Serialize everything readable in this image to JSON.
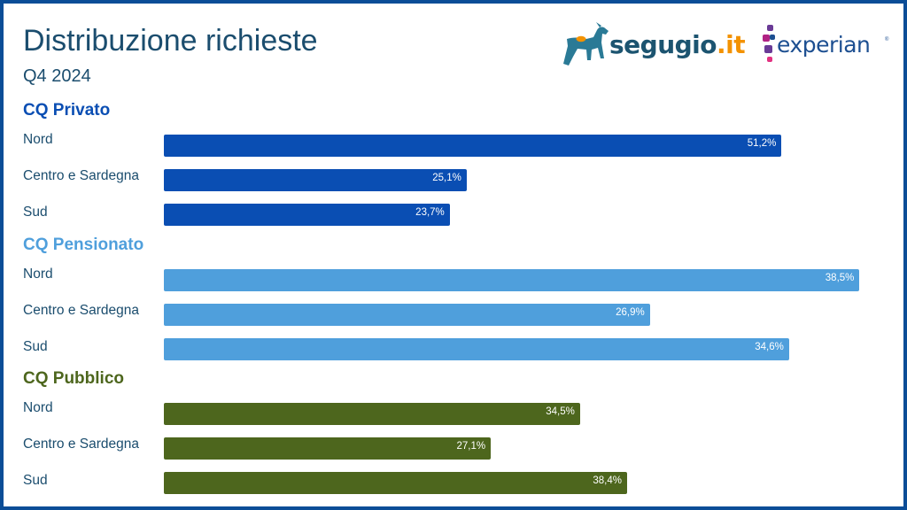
{
  "header": {
    "title": "Distribuzione richieste",
    "subtitle": "Q4 2024"
  },
  "logos": {
    "segugio": {
      "name": "segugio",
      "suffix": ".it",
      "icon": "dog-icon"
    },
    "experian": {
      "name": "experian",
      "registered": "®",
      "icon": "experian-dots-icon"
    }
  },
  "colors": {
    "cq_privato": "#0a4eb3",
    "cq_pensionato": "#4f9fdc",
    "cq_pubblico": "#4d661d",
    "frame": "#0b4d97",
    "text": "#1b4d6e"
  },
  "chart_data": {
    "type": "bar",
    "orientation": "horizontal",
    "title": "Distribuzione richieste",
    "subtitle": "Q4 2024",
    "value_format": "percent",
    "groups": [
      {
        "name": "CQ Privato",
        "color": "#0a4eb3",
        "categories": [
          "Nord",
          "Centro e Sardegna",
          "Sud"
        ],
        "values": [
          51.2,
          25.1,
          23.7
        ],
        "labels": [
          "51,2%",
          "25,1%",
          "23,7%"
        ]
      },
      {
        "name": "CQ Pensionato",
        "color": "#4f9fdc",
        "categories": [
          "Nord",
          "Centro e Sardegna",
          "Sud"
        ],
        "values": [
          38.5,
          26.9,
          34.6
        ],
        "labels": [
          "38,5%",
          "26,9%",
          "34,6%"
        ]
      },
      {
        "name": "CQ Pubblico",
        "color": "#4d661d",
        "categories": [
          "Nord",
          "Centro e Sardegna",
          "Sud"
        ],
        "values": [
          34.5,
          27.1,
          38.4
        ],
        "labels": [
          "34,5%",
          "27,1%",
          "38,4%"
        ]
      }
    ]
  }
}
